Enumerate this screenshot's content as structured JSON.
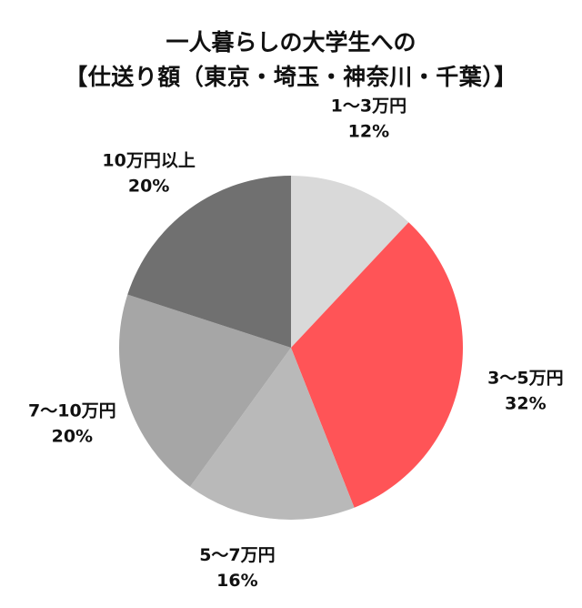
{
  "chart_data": {
    "type": "pie",
    "title": "一人暮らしの大学生への",
    "subtitle": "【仕送り額（東京・埼玉・神奈川・千葉）】",
    "slices": [
      {
        "label": "1〜3万円",
        "value": 12,
        "value_label": "12%",
        "color": "#d9d9d9"
      },
      {
        "label": "3〜5万円",
        "value": 32,
        "value_label": "32%",
        "color": "#ff5457"
      },
      {
        "label": "5〜7万円",
        "value": 16,
        "value_label": "16%",
        "color": "#b9b9b9"
      },
      {
        "label": "7〜10万円",
        "value": 20,
        "value_label": "20%",
        "color": "#a6a6a6"
      },
      {
        "label": "10万円以上",
        "value": 20,
        "value_label": "20%",
        "color": "#707070"
      }
    ],
    "start_angle": "12 o'clock",
    "direction": "clockwise",
    "legend": "none"
  }
}
